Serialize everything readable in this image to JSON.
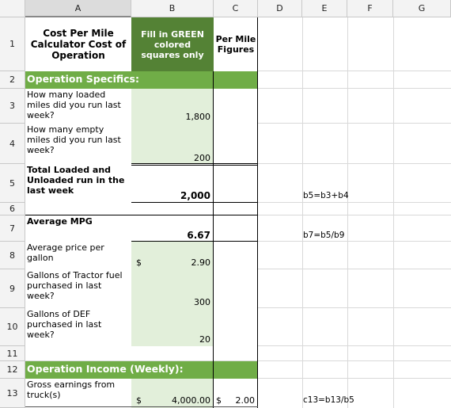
{
  "columns": [
    "A",
    "B",
    "C",
    "D",
    "E",
    "F",
    "G"
  ],
  "rows": [
    "1",
    "2",
    "3",
    "4",
    "5",
    "6",
    "7",
    "8",
    "9",
    "10",
    "11",
    "12",
    "13"
  ],
  "header": {
    "title": "Cost Per Mile Calculator     Cost of Operation",
    "fill_note": "Fill in GREEN colored squares only",
    "per_mile": "Per Mile Figures"
  },
  "sections": {
    "specifics": "Operation Specifics:",
    "income": "Operation Income (Weekly):"
  },
  "rows_data": {
    "r3": {
      "label": "How many loaded miles did you run last week?",
      "value": "1,800"
    },
    "r4": {
      "label": "How many empty miles did you run last week?",
      "value": "200"
    },
    "r5": {
      "label": "Total Loaded and Unloaded run in the last week",
      "value": "2,000",
      "formula": "b5=b3+b4"
    },
    "r7": {
      "label": "Average MPG",
      "value": "6.67",
      "formula": "b7=b5/b9"
    },
    "r8": {
      "label": "Average price per gallon",
      "currency": "$",
      "value": "2.90"
    },
    "r9": {
      "label": "Gallons of Tractor fuel purchased in last week?",
      "value": "300"
    },
    "r10": {
      "label": "Gallons of DEF purchased in last week?",
      "value": "20"
    },
    "r13": {
      "label": "Gross earnings from truck(s)",
      "currency": "$",
      "value": "4,000.00",
      "per_mile_currency": "$",
      "per_mile": "2.00",
      "formula": "c13=b13/b5"
    }
  }
}
